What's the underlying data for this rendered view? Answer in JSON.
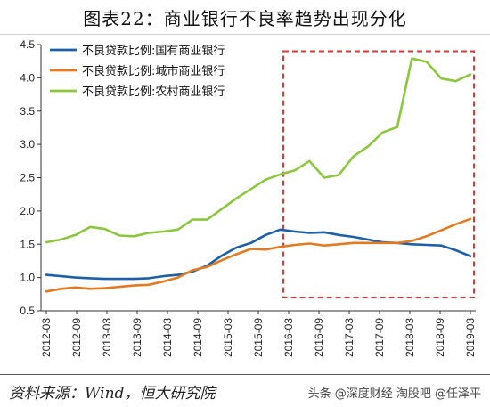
{
  "title": "图表22：商业银行不良率趋势出现分化",
  "source": "资料来源：Wind，恒大研究院",
  "watermark": "头条 @深度财经 淘股吧 @任泽平",
  "colors": {
    "series1": "#1f5fa6",
    "series2": "#e07b24",
    "series3": "#8cc63f",
    "highlight": "#d83a3a"
  },
  "chart_data": {
    "type": "line",
    "ylim": [
      0.5,
      4.5
    ],
    "yticks": [
      "0.5",
      "1.0",
      "1.5",
      "2.0",
      "2.5",
      "3.0",
      "3.5",
      "4.0",
      "4.5"
    ],
    "xticks": [
      "2012-03",
      "2012-09",
      "2013-03",
      "2013-09",
      "2014-03",
      "2014-09",
      "2015-03",
      "2015-09",
      "2016-03",
      "2016-09",
      "2017-03",
      "2017-09",
      "2018-03",
      "2018-09",
      "2019-03"
    ],
    "legend_position": "top-left",
    "highlight_box": {
      "x_start": "2016-03",
      "x_end": "2019-03",
      "y_start": 0.7,
      "y_end": 4.4
    },
    "series": [
      {
        "name": "不良贷款比例:国有商业银行",
        "values": [
          1.04,
          1.02,
          1.0,
          0.99,
          0.98,
          0.98,
          0.98,
          0.99,
          1.02,
          1.04,
          1.09,
          1.18,
          1.33,
          1.45,
          1.52,
          1.64,
          1.72,
          1.69,
          1.67,
          1.68,
          1.64,
          1.61,
          1.57,
          1.53,
          1.52,
          1.5,
          1.49,
          1.48,
          1.41,
          1.32
        ]
      },
      {
        "name": "不良贷款比例:城市商业银行",
        "values": [
          0.79,
          0.83,
          0.85,
          0.83,
          0.84,
          0.86,
          0.88,
          0.89,
          0.94,
          1.0,
          1.11,
          1.16,
          1.26,
          1.35,
          1.43,
          1.42,
          1.46,
          1.49,
          1.51,
          1.48,
          1.5,
          1.52,
          1.52,
          1.52,
          1.52,
          1.55,
          1.62,
          1.71,
          1.8,
          1.88
        ]
      },
      {
        "name": "不良贷款比例:农村商业银行",
        "values": [
          1.53,
          1.57,
          1.64,
          1.76,
          1.73,
          1.63,
          1.62,
          1.67,
          1.69,
          1.72,
          1.87,
          1.87,
          2.03,
          2.19,
          2.33,
          2.47,
          2.55,
          2.61,
          2.75,
          2.5,
          2.54,
          2.82,
          2.97,
          3.18,
          3.26,
          4.29,
          4.24,
          3.99,
          3.95,
          4.05
        ]
      }
    ]
  }
}
